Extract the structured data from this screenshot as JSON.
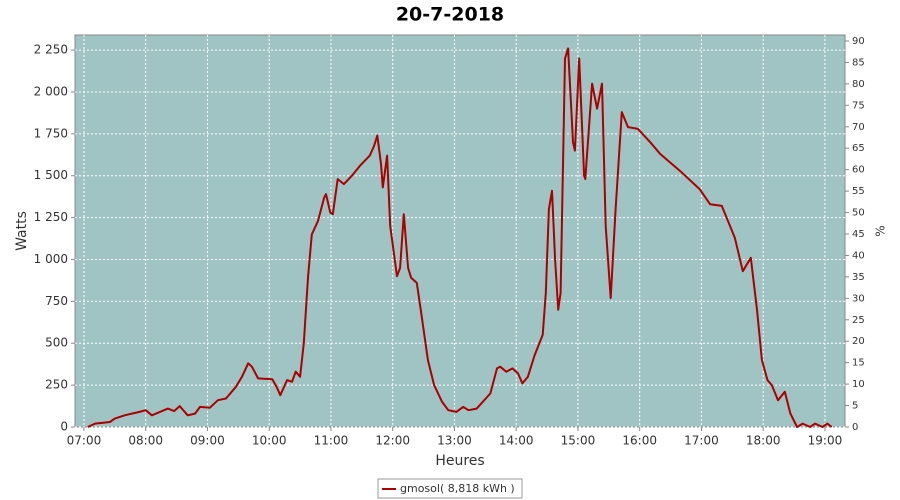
{
  "chart_data": {
    "type": "line",
    "title": "20-7-2018",
    "xlabel": "Heures",
    "ylabel": "Watts",
    "y2label": "%",
    "x": [
      7.06,
      7.18,
      7.42,
      7.5,
      7.66,
      7.9,
      8.0,
      8.1,
      8.23,
      8.36,
      8.46,
      8.55,
      8.68,
      8.8,
      8.88,
      9.04,
      9.17,
      9.3,
      9.46,
      9.56,
      9.66,
      9.72,
      9.82,
      10.05,
      10.12,
      10.18,
      10.29,
      10.37,
      10.43,
      10.5,
      10.56,
      10.63,
      10.69,
      10.79,
      10.89,
      10.92,
      10.99,
      11.03,
      11.11,
      11.21,
      11.34,
      11.47,
      11.63,
      11.7,
      11.75,
      11.81,
      11.84,
      11.91,
      11.96,
      12.07,
      12.12,
      12.18,
      12.25,
      12.3,
      12.39,
      12.47,
      12.57,
      12.67,
      12.8,
      12.9,
      13.03,
      13.14,
      13.23,
      13.36,
      13.58,
      13.69,
      13.74,
      13.84,
      13.94,
      14.03,
      14.1,
      14.19,
      14.3,
      14.43,
      14.48,
      14.53,
      14.58,
      14.63,
      14.68,
      14.72,
      14.79,
      14.84,
      14.92,
      14.95,
      15.02,
      15.1,
      15.12,
      15.23,
      15.31,
      15.39,
      15.45,
      15.53,
      15.61,
      15.71,
      15.81,
      15.97,
      16.17,
      16.33,
      16.65,
      16.97,
      17.14,
      17.33,
      17.54,
      17.67,
      17.8,
      17.9,
      17.98,
      18.07,
      18.14,
      18.24,
      18.35,
      18.44,
      18.55,
      18.64,
      18.76,
      18.84,
      18.96,
      19.04,
      19.11
    ],
    "series": [
      {
        "name": "gmosol( 8,818 kWh )",
        "color": "#aa0000",
        "values": [
          0,
          20,
          30,
          50,
          70,
          90,
          100,
          70,
          90,
          110,
          95,
          125,
          70,
          80,
          120,
          115,
          160,
          170,
          240,
          300,
          380,
          360,
          290,
          285,
          240,
          190,
          280,
          270,
          330,
          300,
          500,
          900,
          1150,
          1230,
          1370,
          1390,
          1280,
          1270,
          1480,
          1450,
          1500,
          1560,
          1620,
          1680,
          1740,
          1570,
          1430,
          1620,
          1200,
          900,
          950,
          1270,
          950,
          890,
          860,
          660,
          400,
          250,
          150,
          100,
          90,
          120,
          100,
          110,
          200,
          350,
          360,
          330,
          350,
          320,
          260,
          300,
          430,
          550,
          800,
          1300,
          1410,
          1000,
          700,
          800,
          2200,
          2260,
          1700,
          1650,
          2200,
          1500,
          1480,
          2050,
          1900,
          2050,
          1200,
          770,
          1300,
          1880,
          1790,
          1780,
          1700,
          1630,
          1530,
          1420,
          1330,
          1320,
          1130,
          930,
          1010,
          700,
          400,
          280,
          250,
          160,
          210,
          80,
          0,
          20,
          0,
          20,
          0,
          20,
          0
        ]
      }
    ],
    "xlim": [
      6.855,
      19.325
    ],
    "xticks": [
      {
        "value": 7,
        "label": "07:00"
      },
      {
        "value": 8,
        "label": "08:00"
      },
      {
        "value": 9,
        "label": "09:00"
      },
      {
        "value": 10,
        "label": "10:00"
      },
      {
        "value": 11,
        "label": "11:00"
      },
      {
        "value": 12,
        "label": "12:00"
      },
      {
        "value": 13,
        "label": "13:00"
      },
      {
        "value": 14,
        "label": "14:00"
      },
      {
        "value": 15,
        "label": "15:00"
      },
      {
        "value": 16,
        "label": "16:00"
      },
      {
        "value": 17,
        "label": "17:00"
      },
      {
        "value": 18,
        "label": "18:00"
      },
      {
        "value": 19,
        "label": "19:00"
      }
    ],
    "ylim": [
      0,
      2340
    ],
    "yticks": [
      0,
      250,
      500,
      750,
      {
        "value": 1000,
        "label": "1 000"
      },
      {
        "value": 1250,
        "label": "1 250"
      },
      {
        "value": 1500,
        "label": "1 500"
      },
      {
        "value": 1750,
        "label": "1 750"
      },
      {
        "value": 2000,
        "label": "2 000"
      },
      {
        "value": 2250,
        "label": "2 250"
      }
    ],
    "y2lim": [
      0,
      91.4
    ],
    "y2ticks": [
      0,
      5,
      10,
      15,
      20,
      25,
      30,
      35,
      40,
      45,
      50,
      55,
      60,
      65,
      70,
      75,
      80,
      85,
      90
    ],
    "grid": true,
    "plot_background": "#a0c4c4",
    "legend": "bottom"
  }
}
